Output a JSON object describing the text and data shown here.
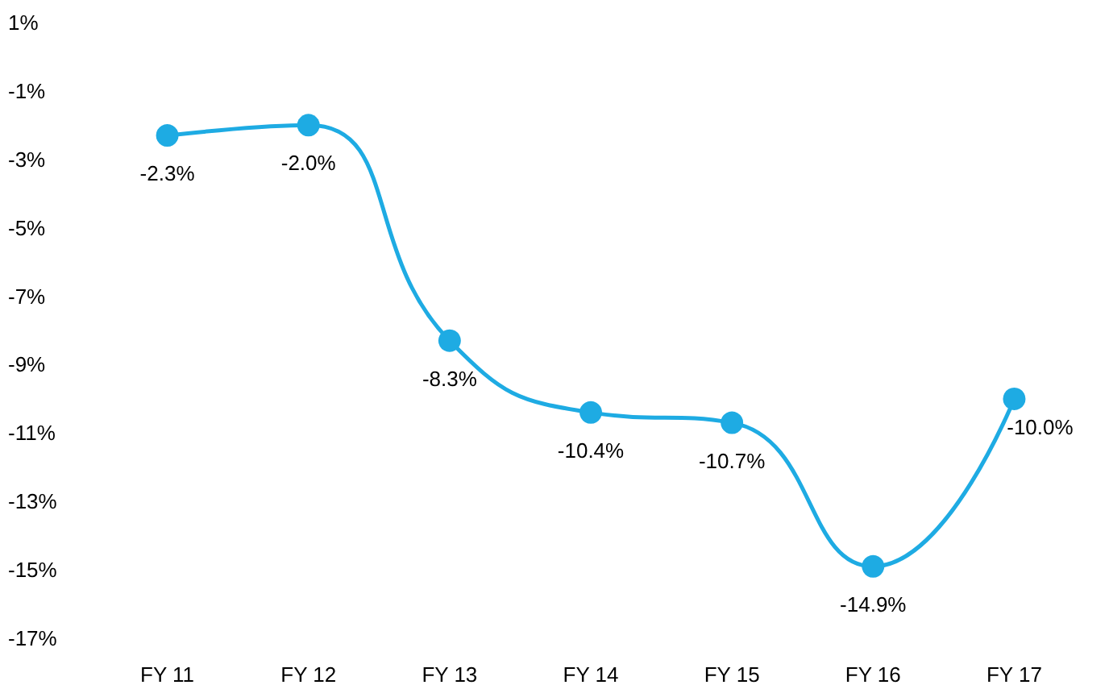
{
  "chart_data": {
    "type": "line",
    "categories": [
      "FY 11",
      "FY 12",
      "FY 13",
      "FY 14",
      "FY 15",
      "FY 16",
      "FY 17"
    ],
    "series": [
      {
        "color": "#1eabe3",
        "values": [
          -2.3,
          -2.0,
          -8.3,
          -10.4,
          -10.7,
          -14.9,
          -10.0
        ],
        "value_labels": [
          "-2.3%",
          "-2.0%",
          "-8.3%",
          "-10.4%",
          "-10.7%",
          "-14.9%",
          "-10.0%"
        ]
      }
    ],
    "ylim": [
      -17,
      1
    ],
    "yticks": [
      {
        "value": 1,
        "label": "1%"
      },
      {
        "value": -1,
        "label": "-1%"
      },
      {
        "value": -3,
        "label": "-3%"
      },
      {
        "value": -5,
        "label": "-5%"
      },
      {
        "value": -7,
        "label": "-7%"
      },
      {
        "value": -9,
        "label": "-9%"
      },
      {
        "value": -11,
        "label": "-11%"
      },
      {
        "value": -13,
        "label": "-13%"
      },
      {
        "value": -15,
        "label": "-15%"
      },
      {
        "value": -17,
        "label": "-17%"
      }
    ],
    "grid": false,
    "marker": "circle",
    "line_style": "solid"
  }
}
